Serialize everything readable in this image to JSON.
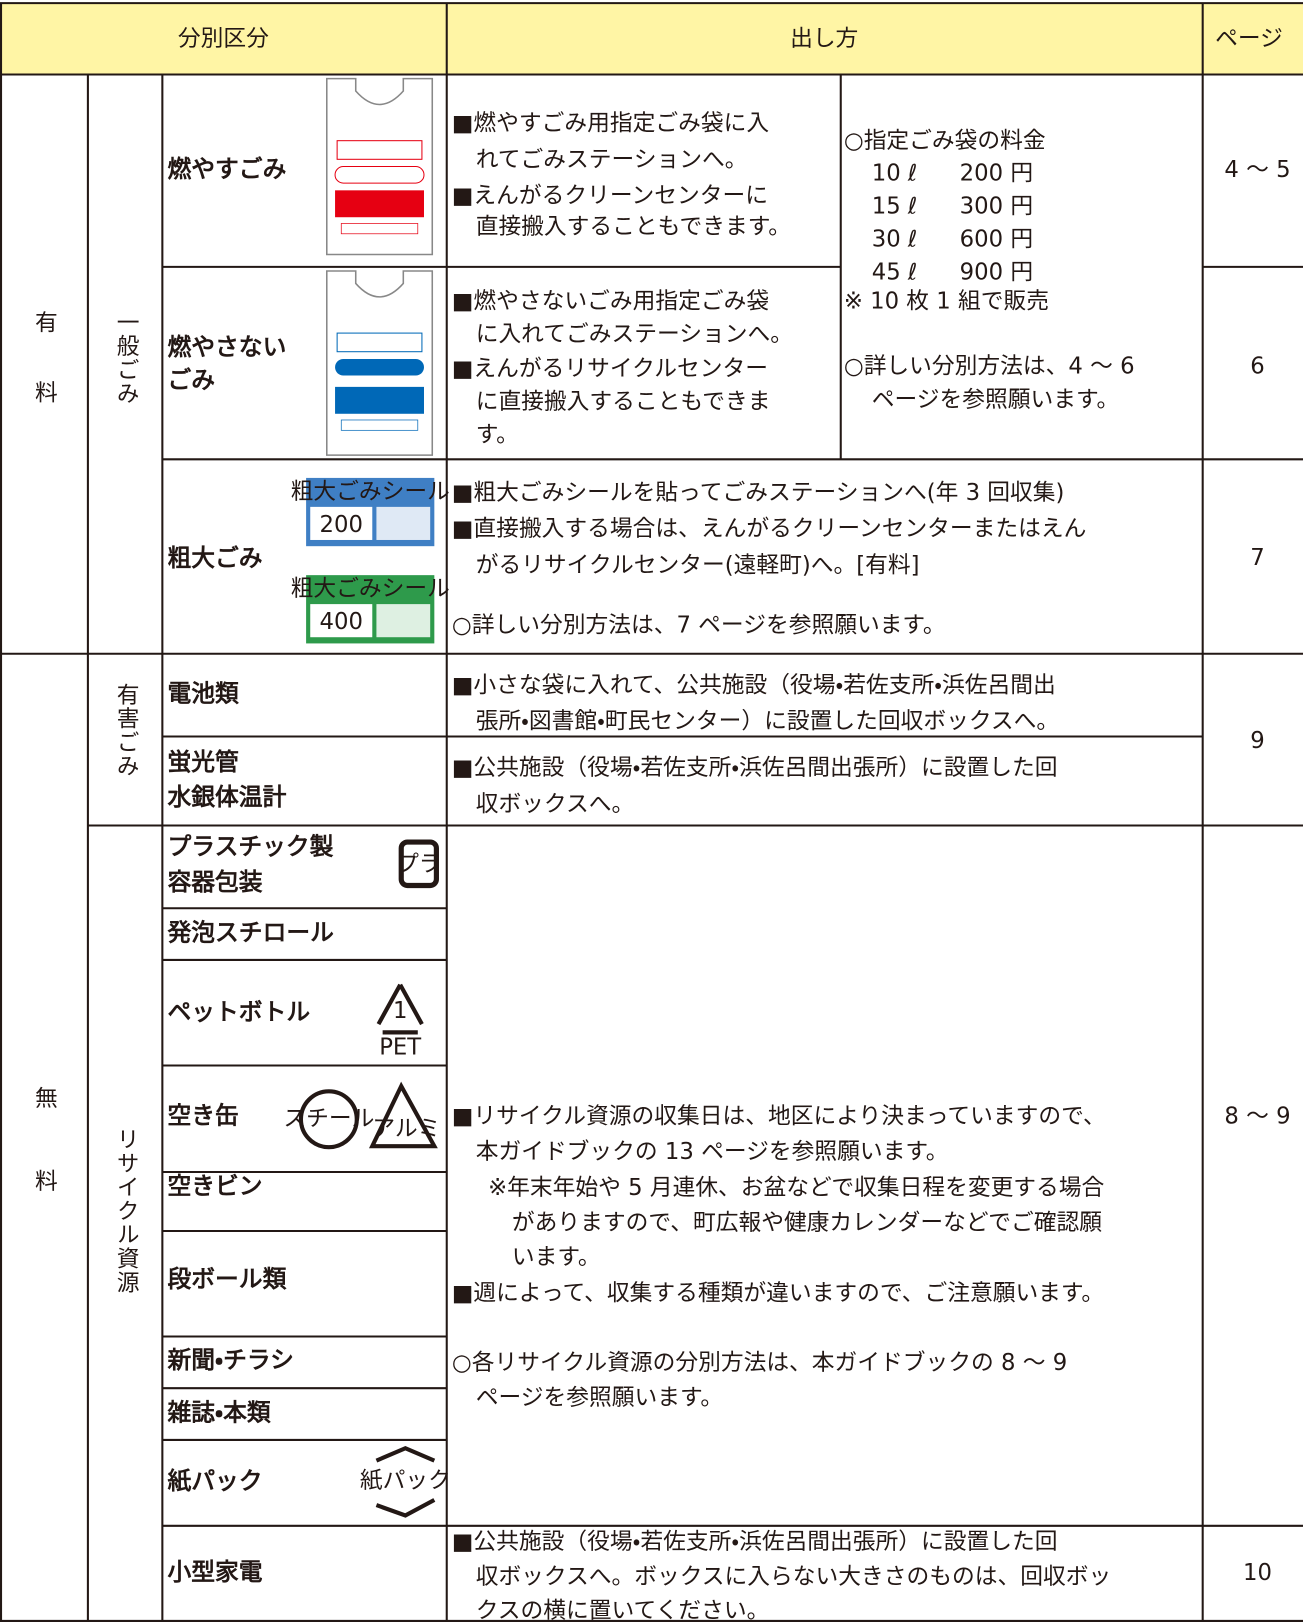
{
  "header": {
    "category": "分別区分",
    "method": "出し方",
    "page": "ページ"
  },
  "fee_groups": [
    "有料",
    "無料"
  ],
  "sub_groups": [
    "一般ごみ",
    "有害ごみ",
    "リサイクル資源"
  ],
  "items": [
    {
      "label": [
        "燃やすごみ"
      ],
      "color": "#e60012"
    },
    {
      "label": [
        "燃やさない",
        "ごみ"
      ],
      "color": "#0068b7"
    },
    {
      "label": [
        "粗大ごみ"
      ],
      "color": "#b4611c"
    },
    {
      "label": [
        "電池類"
      ],
      "color": "#8e3f97"
    },
    {
      "label": [
        "蛍光管",
        "水銀体温計"
      ],
      "color": "#8e3f97"
    },
    {
      "label": [
        "プラスチック製",
        "容器包装"
      ],
      "color": "#f39800"
    },
    {
      "label": [
        "発泡スチロール"
      ],
      "color": "#f39800"
    },
    {
      "label": [
        "ペットボトル"
      ],
      "color": "#f39800"
    },
    {
      "label": [
        "空き缶"
      ],
      "color": "#f39800"
    },
    {
      "label": [
        "空きビン"
      ],
      "color": "#f39800"
    },
    {
      "label": [
        "段ボール類"
      ],
      "color": "#f39800"
    },
    {
      "label": [
        "新聞・チラシ"
      ],
      "color": "#f39800"
    },
    {
      "label": [
        "雑誌・本類"
      ],
      "color": "#f39800"
    },
    {
      "label": [
        "紙パック"
      ],
      "color": "#f39800"
    },
    {
      "label": [
        "小型家電"
      ],
      "color": "#55a630"
    }
  ],
  "instructions": [
    [
      "■燃やすごみ用指定ごみ袋に入",
      "れてごみステーションへ。",
      "■えんがるクリーンセンターに",
      "直接搬入することもできます。"
    ],
    [
      "■燃やさないごみ用指定ごみ袋",
      "に入れてごみステーションへ。",
      "■えんがるリサイクルセンター",
      "に直接搬入することもできま",
      "す。"
    ],
    [
      "■粗大ごみシールを貼ってごみステーションへ(年 3 回収集)",
      "■直接搬入する場合は、えんがるクリーンセンターまたはえん",
      "がるリサイクルセンター(遠軽町)へ。[有料]",
      "○詳しい分別方法は、7 ページを参照願います。"
    ],
    [
      "■小さな袋に入れて、公共施設（役場・若佐支所・浜佐呂間出",
      "張所・図書館・町民センター）に設置した回収ボックスへ。"
    ],
    [
      "■公共施設（役場・若佐支所・浜佐呂間出張所）に設置した回",
      "収ボックスへ。"
    ],
    [
      "■リサイクル資源の収集日は、地区により決まっていますので、",
      "本ガイドブックの 13 ページを参照願います。",
      "※年末年始や 5 月連休、お盆などで収集日程を変更する場合",
      "がありますので、町広報や健康カレンダーなどでご確認願",
      "います。",
      "■週によって、収集する種類が違いますので、ご注意願います。",
      "○各リサイクル資源の分別方法は、本ガイドブックの 8 ～ 9",
      "ページを参照願います。"
    ],
    [
      "■公共施設（役場・若佐支所・浜佐呂間出張所）に設置した回",
      "収ボックスへ。ボックスに入らない大きさのものは、回収ボッ",
      "クスの横に置いてください。"
    ]
  ],
  "bag_fees": {
    "heading": "○指定ごみ袋の料金",
    "prices": [
      {
        "size": "10 ℓ",
        "price": "200 円"
      },
      {
        "size": "15 ℓ",
        "price": "300 円"
      },
      {
        "size": "30 ℓ",
        "price": "600 円"
      },
      {
        "size": "45 ℓ",
        "price": "900 円"
      }
    ],
    "notes": [
      "※ 10 枚 1 組で販売",
      "○詳しい分別方法は、4 ～ 6",
      "ページを参照願います。"
    ]
  },
  "pages": [
    "4 ～ 5",
    "6",
    "7",
    "9",
    "8 ～ 9",
    "10"
  ],
  "image_texts": {
    "sticker_title": "粗大ごみシール",
    "sticker_prices": [
      "200",
      "400"
    ],
    "pla": "プラ",
    "pet": [
      "1",
      "PET"
    ],
    "steel": "スチール",
    "alumi": "アルミ",
    "carton": "紙パック"
  }
}
